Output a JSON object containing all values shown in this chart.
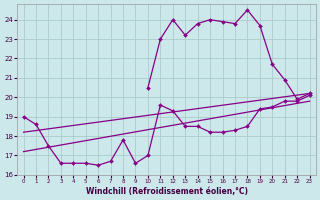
{
  "background_color": "#cce8ea",
  "grid_color": "#aacccc",
  "line_color": "#880088",
  "xlim": [
    -0.5,
    23.5
  ],
  "ylim": [
    16,
    24.8
  ],
  "xlabel": "Windchill (Refroidissement éolien,°C)",
  "yticks": [
    16,
    17,
    18,
    19,
    20,
    21,
    22,
    23,
    24
  ],
  "xticks": [
    0,
    1,
    2,
    3,
    4,
    5,
    6,
    7,
    8,
    9,
    10,
    11,
    12,
    13,
    14,
    15,
    16,
    17,
    18,
    19,
    20,
    21,
    22,
    23
  ],
  "line_zigzag_x": [
    0,
    1,
    2,
    3,
    4,
    5,
    6,
    7,
    8,
    9,
    10,
    11,
    12,
    13,
    14,
    15,
    16,
    17,
    18,
    19,
    20,
    21,
    22,
    23
  ],
  "line_zigzag_y": [
    19.0,
    18.6,
    17.5,
    16.6,
    16.6,
    16.6,
    16.5,
    16.7,
    17.8,
    16.6,
    17.0,
    19.6,
    19.3,
    18.5,
    18.5,
    18.2,
    18.2,
    18.3,
    18.5,
    19.4,
    19.5,
    19.8,
    19.8,
    20.1
  ],
  "line_upper_x": [
    10,
    11,
    12,
    13,
    14,
    15,
    16,
    17,
    18,
    19,
    20,
    21,
    22,
    23
  ],
  "line_upper_y": [
    20.5,
    23.0,
    24.0,
    23.2,
    23.8,
    24.0,
    23.9,
    23.8,
    24.5,
    23.7,
    21.7,
    20.9,
    19.9,
    20.2
  ],
  "line_trend1_x": [
    0,
    23
  ],
  "line_trend1_y": [
    18.2,
    20.2
  ],
  "line_trend2_x": [
    0,
    23
  ],
  "line_trend2_y": [
    17.2,
    19.8
  ]
}
